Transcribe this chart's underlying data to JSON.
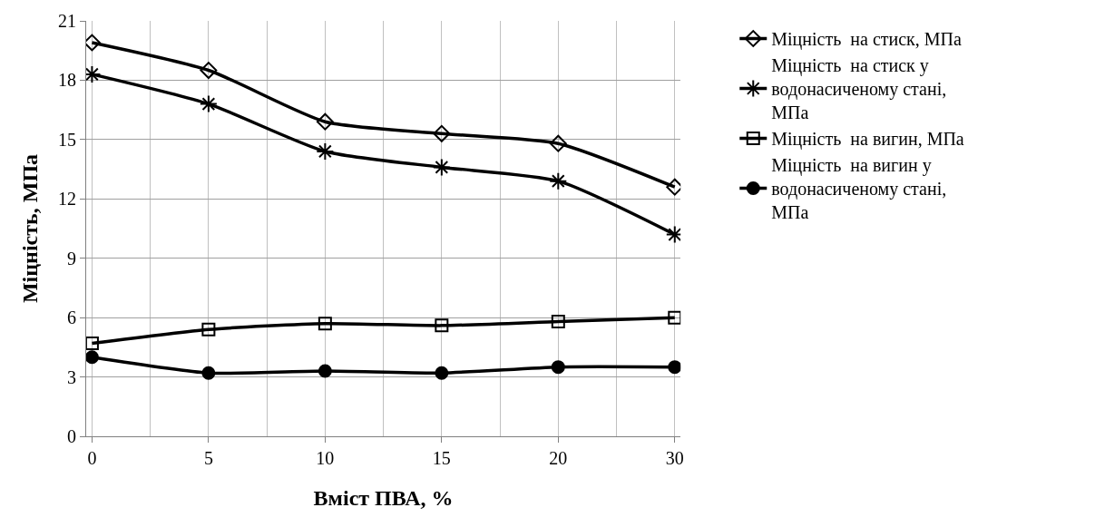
{
  "chart_data": {
    "type": "line",
    "xlabel": "Вміст ПВА, %",
    "ylabel": "Міцність, МПа",
    "categories": [
      "0",
      "5",
      "10",
      "15",
      "20",
      "30"
    ],
    "ylim": [
      0,
      21
    ],
    "yticks": [
      0,
      3,
      6,
      9,
      12,
      15,
      18,
      21
    ],
    "grid": true,
    "legend": "right",
    "line_style": "solid",
    "series": [
      {
        "name": "Міцність  на стиск, МПа",
        "color": "#000000",
        "marker": "diamond",
        "values": [
          19.9,
          18.5,
          15.9,
          15.3,
          14.8,
          12.6
        ]
      },
      {
        "name": "Міцність  на стиск у водонасиченому стані, МПа",
        "color": "#000000",
        "marker": "cross",
        "values": [
          18.3,
          16.8,
          14.4,
          13.6,
          12.9,
          10.2
        ]
      },
      {
        "name": "Міцність  на вигин, МПа",
        "color": "#000000",
        "marker": "square",
        "values": [
          4.7,
          5.4,
          5.7,
          5.6,
          5.8,
          6.0
        ]
      },
      {
        "name": "Міцність  на вигин у водонасиченому стані, МПа",
        "color": "#000000",
        "marker": "circle",
        "values": [
          4.0,
          3.2,
          3.3,
          3.2,
          3.5,
          3.5
        ]
      }
    ]
  }
}
